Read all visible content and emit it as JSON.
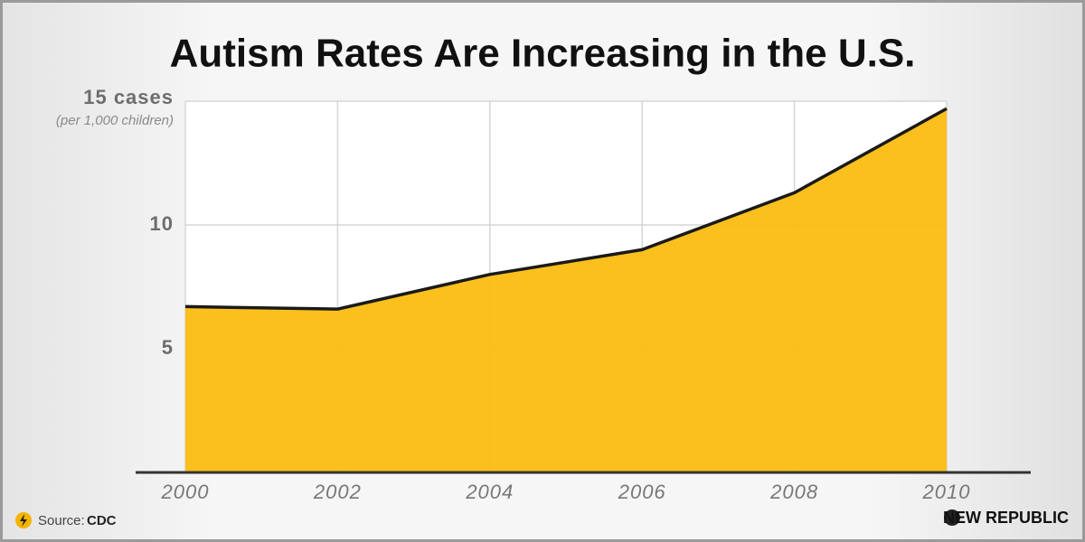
{
  "chart_data": {
    "type": "area",
    "title": "Autism Rates Are Increasing in the U.S.",
    "y_label": "(per 1,000 children)",
    "x": [
      2000,
      2002,
      2004,
      2006,
      2008,
      2010
    ],
    "values": [
      6.7,
      6.6,
      8.0,
      9.0,
      11.3,
      14.7
    ],
    "color": "#fbbd12",
    "line_color": "#1a1a1a",
    "xlim": [
      2000,
      2010
    ],
    "xticks": [
      2000,
      2002,
      2004,
      2006,
      2008,
      2010
    ],
    "ylim": [
      0,
      15
    ],
    "yticks": [
      5,
      10,
      {
        "value": 15,
        "label": "15 cases"
      }
    ],
    "grid": true,
    "source_label": "Source:",
    "source": "CDC",
    "brand": "NEW REPUBLIC"
  }
}
